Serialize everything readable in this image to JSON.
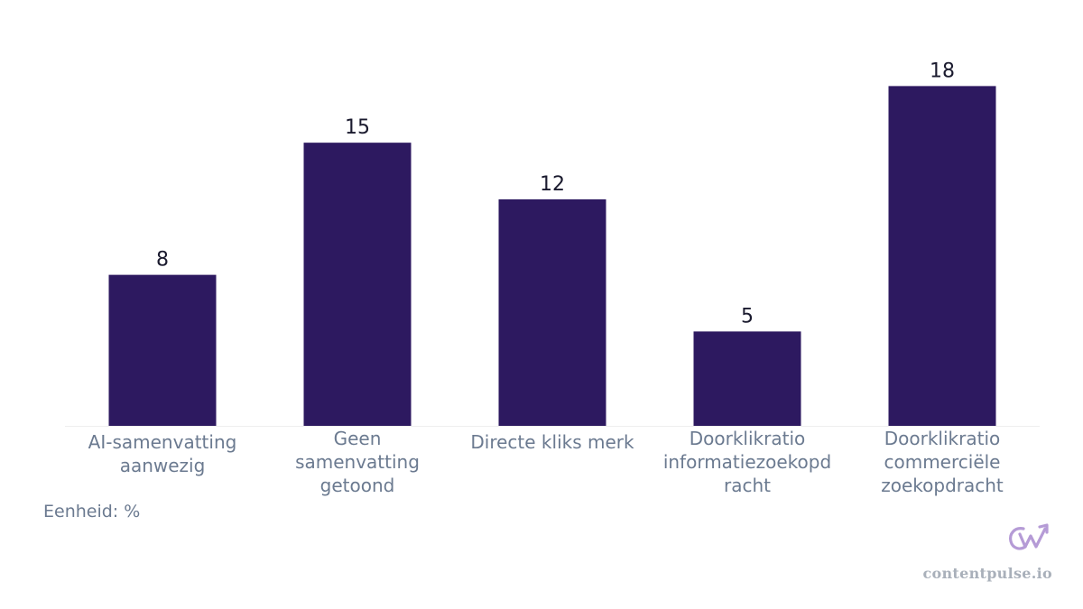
{
  "chart_data": {
    "type": "bar",
    "categories": [
      [
        "AI-samenvatting",
        "aanwezig"
      ],
      [
        "Geen",
        "samenvatting",
        "getoond"
      ],
      [
        "Directe kliks merk"
      ],
      [
        "Doorklikratio",
        "informatiezoekopd",
        "racht"
      ],
      [
        "Doorklikratio",
        "commerciële",
        "zoekopdracht"
      ]
    ],
    "values": [
      8,
      15,
      12,
      5,
      18
    ],
    "data_labels": [
      "8",
      "15",
      "12",
      "5",
      "18"
    ],
    "ylim": [
      0,
      19.5
    ],
    "bar_color": "#2d1960",
    "grid": false,
    "legend": "none"
  },
  "footer": {
    "unit_note": "Eenheid: %",
    "brand": "contentpulse.io",
    "logo_icon": "contentpulse-logo-icon",
    "logo_color": "#b59bd6"
  }
}
